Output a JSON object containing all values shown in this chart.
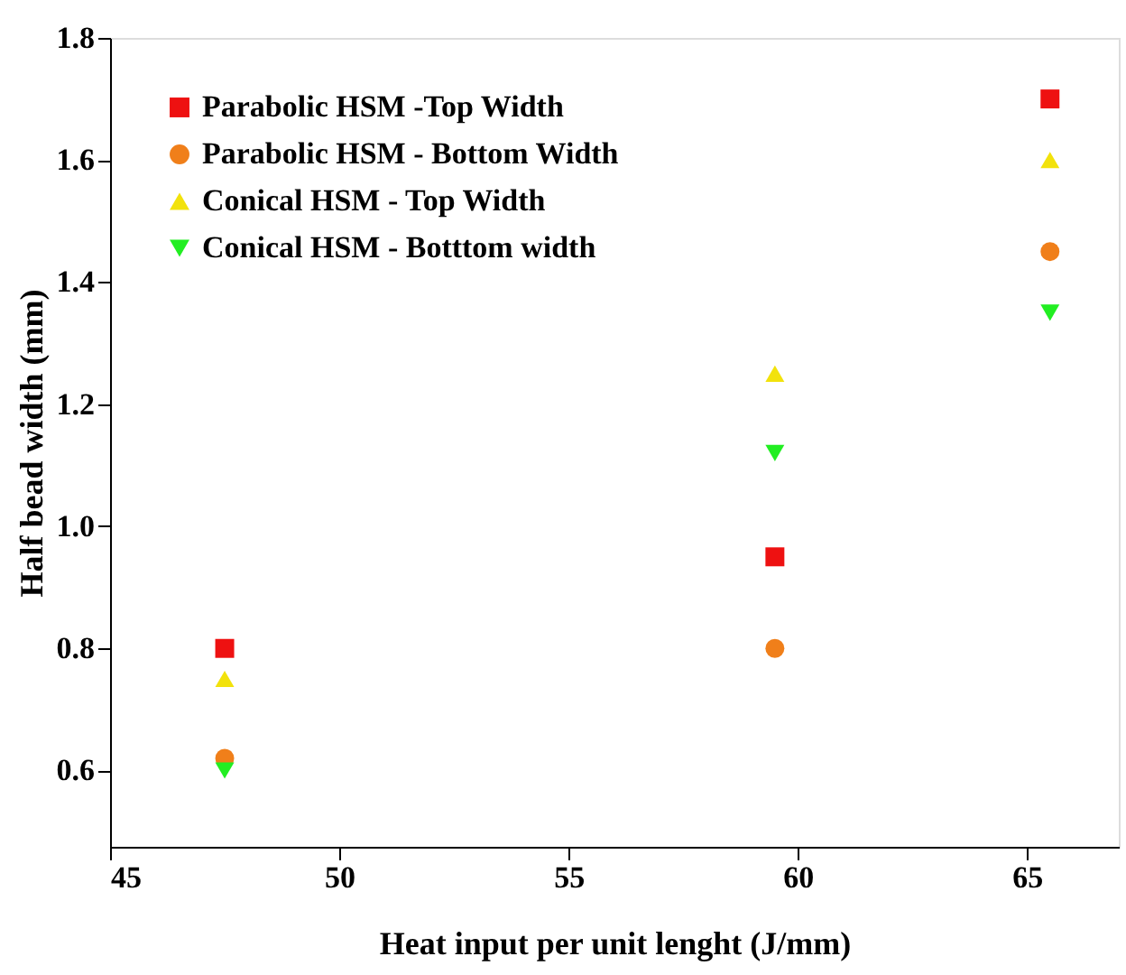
{
  "chart_data": {
    "type": "scatter",
    "xlabel": "Heat input per unit lenght (J/mm)",
    "ylabel": "Half bead width (mm)",
    "x": [
      47.5,
      59.5,
      65.5
    ],
    "series": [
      {
        "name": "Parabolic HSM -Top Width",
        "color": "#ee1111",
        "marker": "square",
        "values": [
          0.8,
          0.95,
          1.7
        ]
      },
      {
        "name": "Parabolic HSM - Bottom Width",
        "color": "#f07f1a",
        "marker": "circle",
        "values": [
          0.62,
          0.8,
          1.45
        ]
      },
      {
        "name": "Conical HSM - Top Width",
        "color": "#f2e20c",
        "marker": "triangle",
        "values": [
          0.75,
          1.25,
          1.6
        ]
      },
      {
        "name": "Conical HSM - Botttom width",
        "color": "#22ee22",
        "marker": "triangle-down",
        "values": [
          0.6,
          1.12,
          1.35
        ]
      }
    ],
    "xlim": [
      45,
      67
    ],
    "xticks": [
      45,
      50,
      55,
      60,
      65
    ],
    "ylim": [
      0.475,
      1.8
    ],
    "yticks": [
      0.6,
      0.8,
      {
        "value": 1,
        "label": "1.0"
      },
      1.2,
      1.4,
      1.6,
      1.8
    ],
    "grid": false,
    "legend": "top left"
  }
}
